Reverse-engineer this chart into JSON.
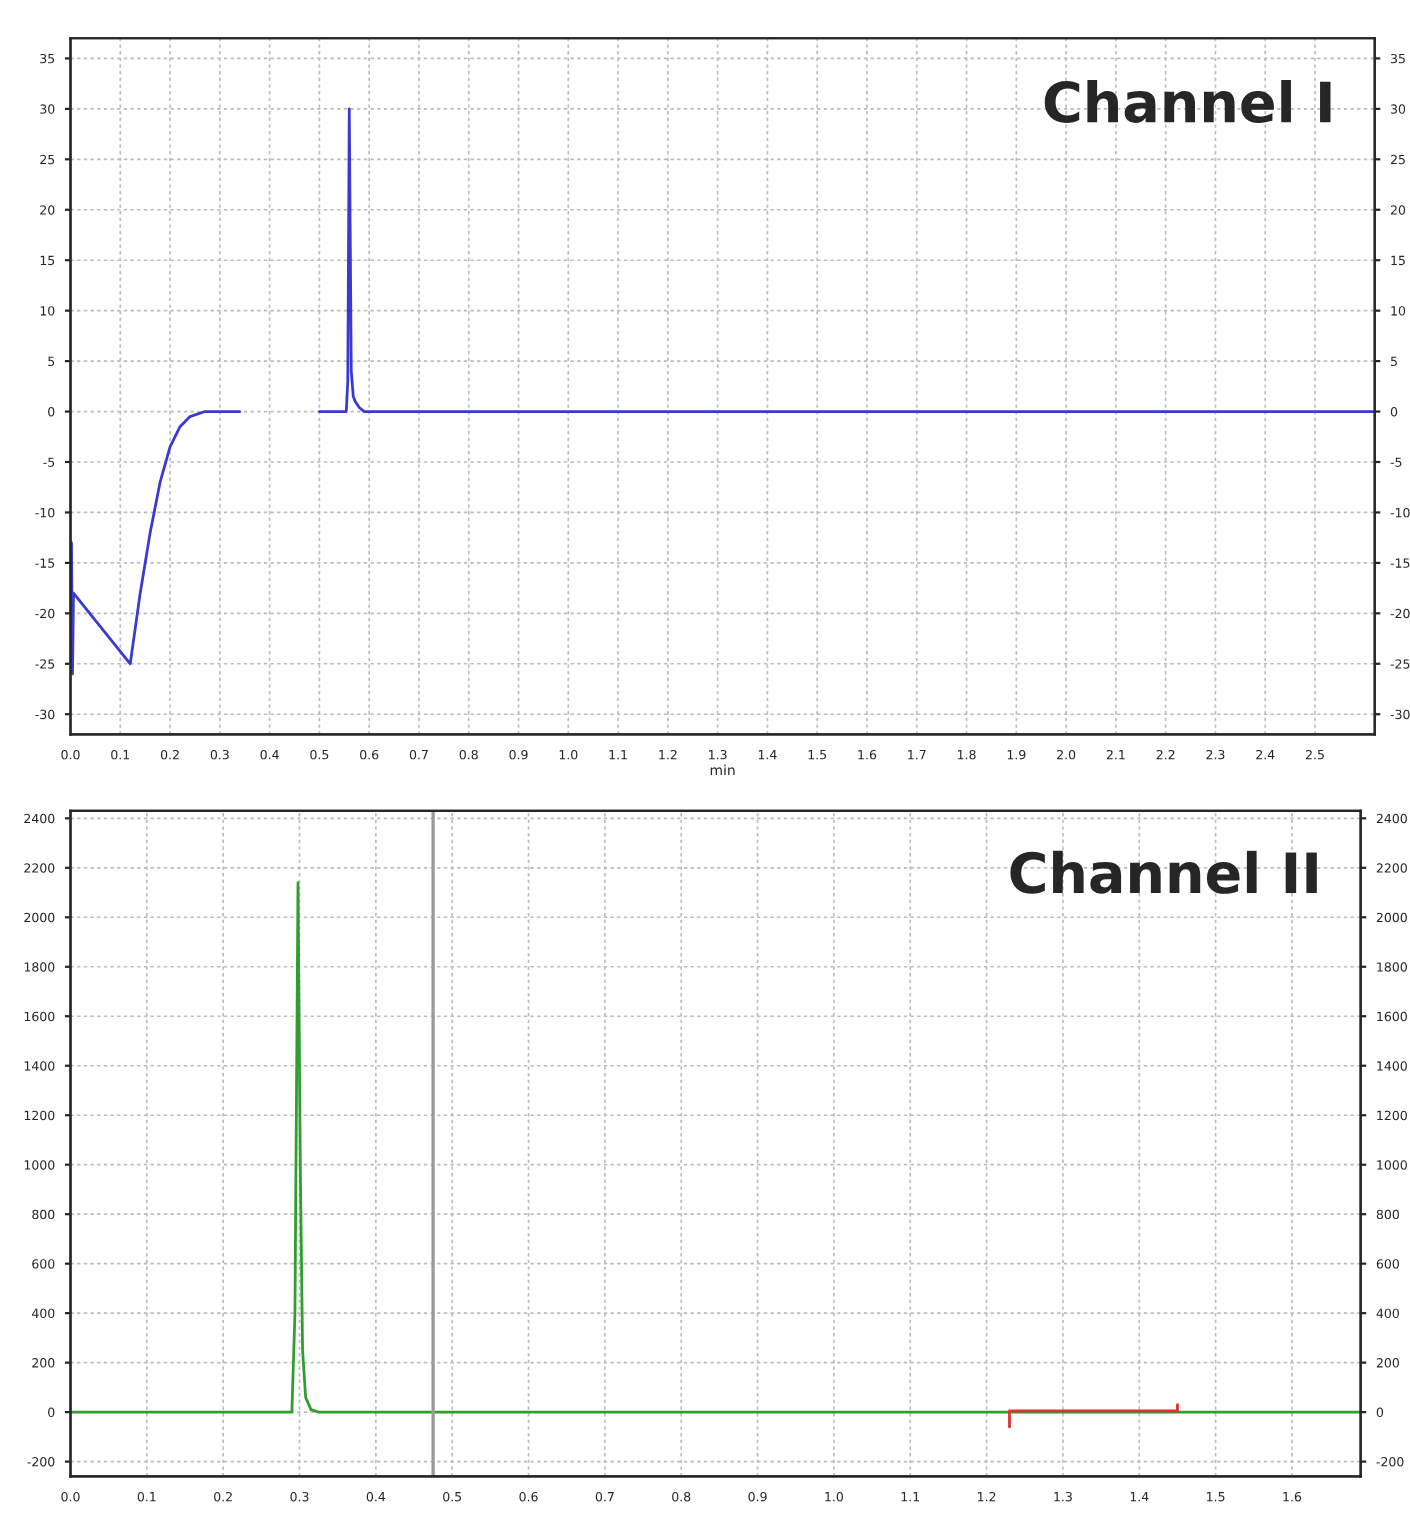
{
  "chart_data": [
    {
      "type": "line",
      "title": "Channel I",
      "xlabel": "min",
      "series": [
        {
          "color": "#3a3ad0",
          "x": [
            0,
            0.002,
            0.004,
            0.006,
            0.12,
            0.14,
            0.16,
            0.18,
            0.2,
            0.22,
            0.24,
            0.27,
            0.34,
            0.4,
            0.5,
            0.554,
            0.557,
            0.56,
            0.564,
            0.568,
            0.572,
            0.58,
            0.59,
            2.62
          ],
          "values": [
            -18,
            -13,
            -26,
            -18,
            -25,
            -18,
            -12,
            -7,
            -3.5,
            -1.5,
            -0.5,
            0,
            0,
            null,
            0,
            0,
            3,
            30,
            4,
            1.5,
            1,
            0.4,
            0,
            0
          ]
        }
      ],
      "xlim": [
        0,
        2.62
      ],
      "ylim": [
        -32,
        37
      ],
      "xticks": [
        {
          "value": 0,
          "label": "0.0"
        },
        0.1,
        0.2,
        0.3,
        0.4,
        0.5,
        0.6,
        0.7,
        0.8,
        0.9,
        {
          "value": 1,
          "label": "1.0"
        },
        1.1,
        1.2,
        1.3,
        1.4,
        1.5,
        1.6,
        1.7,
        1.8,
        1.9,
        {
          "value": 2,
          "label": "2.0"
        },
        2.1,
        2.2,
        2.3,
        2.4,
        2.5
      ],
      "yticks": [
        -30,
        -25,
        -20,
        -15,
        -10,
        -5,
        0,
        5,
        10,
        15,
        20,
        25,
        30,
        35
      ],
      "y2lim": [
        -32,
        37
      ],
      "y2ticks": [
        -30,
        -25,
        -20,
        -15,
        -10,
        -5,
        0,
        5,
        10,
        15,
        20,
        25,
        30,
        35
      ],
      "grid": true,
      "legend": false,
      "line_style": "solid",
      "marker": "none"
    },
    {
      "type": "line",
      "title": "Channel II",
      "series": [
        {
          "color": "#2e9e2e",
          "x": [
            0,
            0.29,
            0.294,
            0.298,
            0.301,
            0.304,
            0.308,
            0.315,
            0.325,
            1.69
          ],
          "values": [
            0,
            0,
            400,
            2140,
            1000,
            250,
            60,
            10,
            0,
            0
          ]
        },
        {
          "color": "#e03030",
          "x": [
            1.23,
            1.23,
            1.45,
            1.45
          ],
          "values": [
            -60,
            5,
            5,
            30
          ]
        }
      ],
      "xlim": [
        0,
        1.69
      ],
      "ylim": [
        -260,
        2430
      ],
      "xticks": [
        {
          "value": 0,
          "label": "0.0"
        },
        0.1,
        0.2,
        0.3,
        0.4,
        0.5,
        0.6,
        0.7,
        0.8,
        0.9,
        {
          "value": 1,
          "label": "1.0"
        },
        1.1,
        1.2,
        1.3,
        1.4,
        1.5,
        1.6
      ],
      "yticks": [
        -200,
        0,
        200,
        400,
        600,
        800,
        1000,
        1200,
        1400,
        1600,
        1800,
        2000,
        2200,
        2400
      ],
      "y2lim": [
        -260,
        2430
      ],
      "y2ticks": [
        -200,
        0,
        200,
        400,
        600,
        800,
        1000,
        1200,
        1400,
        1600,
        1800,
        2000,
        2200,
        2400
      ],
      "ref_lines": [
        {
          "axis": "x",
          "value": 0.475,
          "color": "#9a9a9a",
          "line_style": "solid"
        }
      ],
      "grid": true,
      "legend": false,
      "line_style": "solid",
      "marker": "none"
    }
  ]
}
